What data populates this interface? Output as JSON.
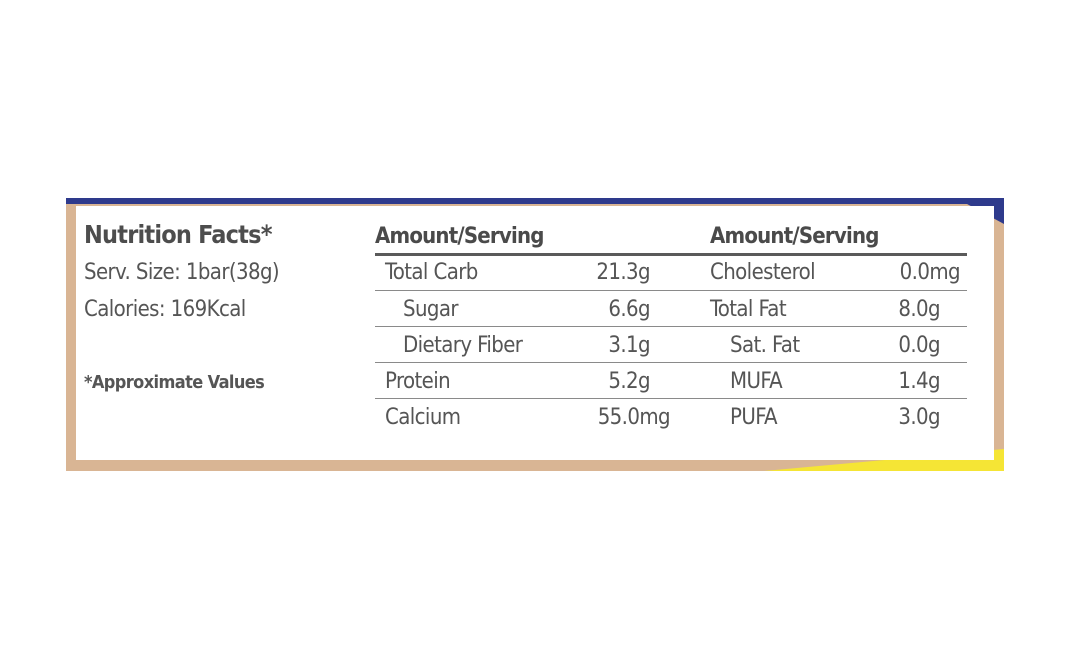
{
  "label": {
    "title": "Nutrition Facts*",
    "serving_size": "Serv. Size: 1bar(38g)",
    "calories": "Calories: 169Kcal",
    "note": "*Approximate Values"
  },
  "table": {
    "headers": [
      "Amount/Serving",
      "Amount/Serving"
    ],
    "rows": [
      {
        "left_name": "Total Carb",
        "left_value": "21.3g",
        "right_name": "Cholesterol",
        "right_value": "0.0mg"
      },
      {
        "left_name": "Sugar",
        "left_value": "6.6g",
        "right_name": "Total Fat",
        "right_value": "8.0g"
      },
      {
        "left_name": "Dietary Fiber",
        "left_value": "3.1g",
        "right_name": "Sat. Fat",
        "right_value": "0.0g"
      },
      {
        "left_name": "Protein",
        "left_value": "5.2g",
        "right_name": "MUFA",
        "right_value": "1.4g"
      },
      {
        "left_name": "Calcium",
        "left_value": "55.0mg",
        "right_name": "PUFA",
        "right_value": "3.0g"
      }
    ]
  },
  "colors": {
    "frame": "#d9b594",
    "navy_accent": "#2e3a8c",
    "yellow_accent": "#f5e535"
  }
}
